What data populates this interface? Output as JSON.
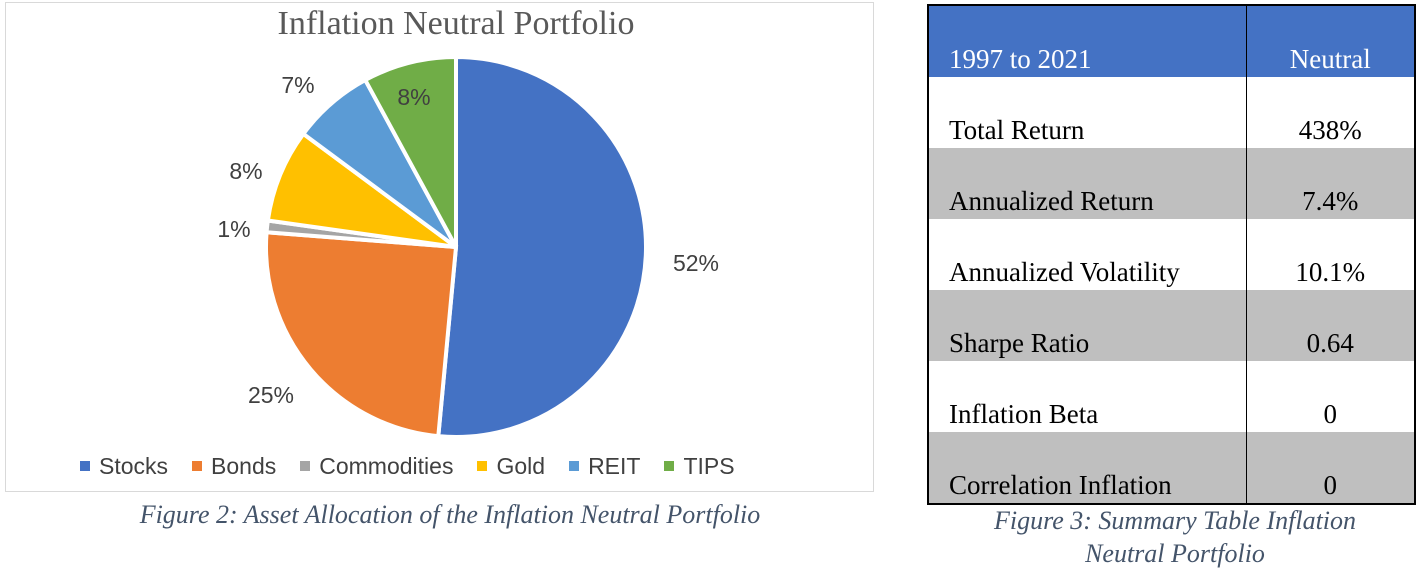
{
  "chart_data": {
    "type": "pie",
    "title": "Inflation Neutral Portfolio",
    "categories": [
      "Stocks",
      "Bonds",
      "Commodities",
      "Gold",
      "REIT",
      "TIPS"
    ],
    "values": [
      52,
      25,
      1,
      8,
      7,
      8
    ],
    "labels": [
      "52%",
      "25%",
      "1%",
      "8%",
      "7%",
      "8%"
    ],
    "colors": [
      "#4472c4",
      "#ed7d31",
      "#a5a5a5",
      "#ffc000",
      "#5b9bd5",
      "#70ad47"
    ],
    "legend_position": "bottom"
  },
  "captions": {
    "figure2": "Figure 2: Asset Allocation of the Inflation Neutral Portfolio",
    "figure3_line1": "Figure 3: Summary Table Inflation",
    "figure3_line2": "Neutral Portfolio"
  },
  "table": {
    "header": {
      "period": "1997 to 2021",
      "column": "Neutral"
    },
    "rows": [
      {
        "metric": "Total Return",
        "value": "438%"
      },
      {
        "metric": "Annualized Return",
        "value": "7.4%"
      },
      {
        "metric": "Annualized Volatility",
        "value": "10.1%"
      },
      {
        "metric": "Sharpe Ratio",
        "value": "0.64"
      },
      {
        "metric": "Inflation Beta",
        "value": "0"
      },
      {
        "metric": "Correlation Inflation",
        "value": "0"
      }
    ]
  }
}
